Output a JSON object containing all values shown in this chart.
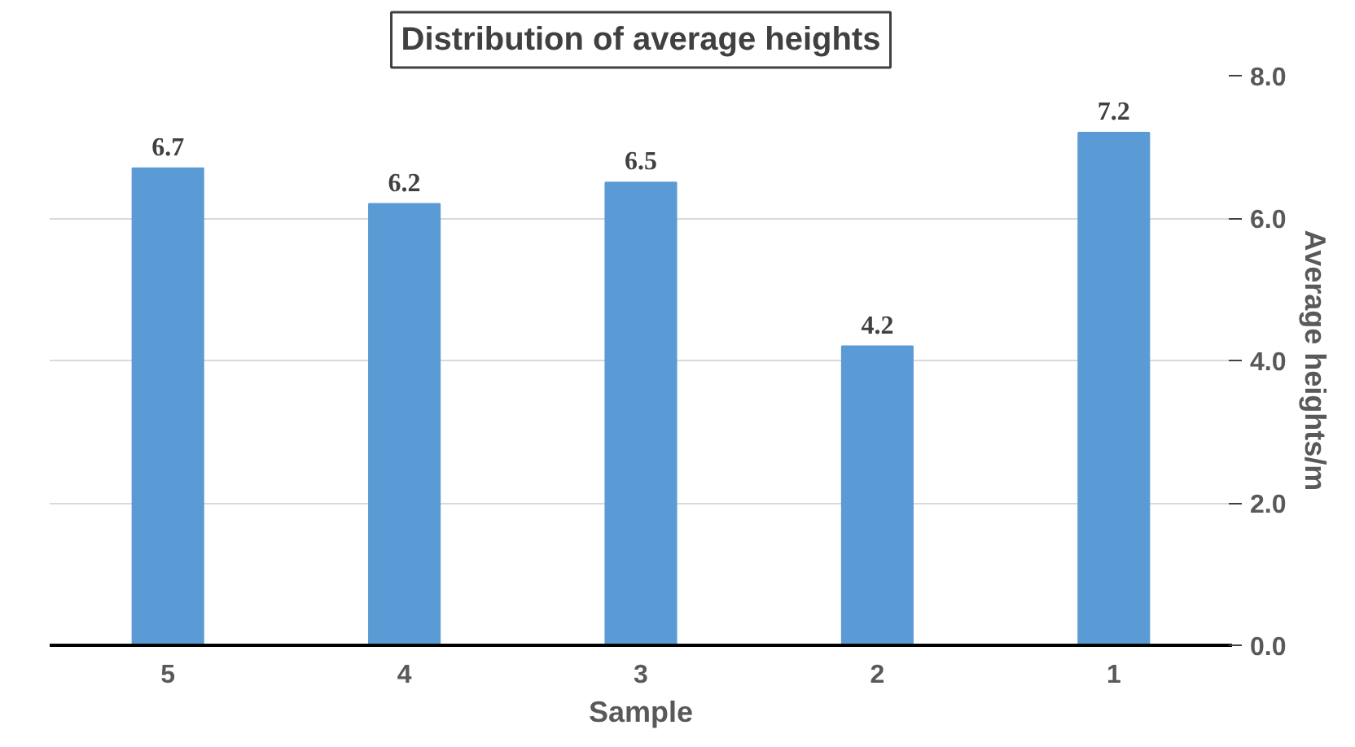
{
  "chart_data": {
    "type": "bar",
    "title": "Distribution of average heights",
    "xlabel": "Sample",
    "ylabel": "Average heights/m",
    "categories": [
      "5",
      "4",
      "3",
      "2",
      "1"
    ],
    "values": [
      6.7,
      6.2,
      6.5,
      4.2,
      7.2
    ],
    "color": "#5b9bd5",
    "ylim": [
      0,
      8
    ],
    "yticks": [
      {
        "value": 0,
        "label": "0.0"
      },
      {
        "value": 2,
        "label": "2.0"
      },
      {
        "value": 4,
        "label": "4.0"
      },
      {
        "value": 6,
        "label": "6.0"
      },
      {
        "value": 8,
        "label": "8.0"
      }
    ],
    "grid": "y",
    "data_labels": true
  }
}
